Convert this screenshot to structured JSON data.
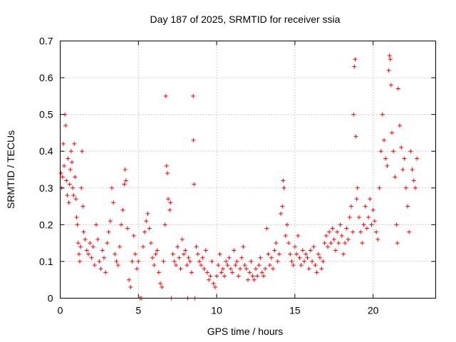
{
  "chart_data": {
    "type": "scatter",
    "title": "Day 187 of 2025, SRMTID for receiver ssia",
    "xlabel": "GPS time / hours",
    "ylabel": "SRMTID / TECUs",
    "xlim": [
      0,
      24
    ],
    "ylim": [
      0,
      0.7
    ],
    "xticks": [
      0,
      5,
      10,
      15,
      20
    ],
    "xtick_labels": [
      "0",
      "5",
      "10",
      "15",
      "20"
    ],
    "yticks": [
      0,
      0.1,
      0.2,
      0.3,
      0.4,
      0.5,
      0.6,
      0.7
    ],
    "ytick_labels": [
      "0",
      "0.1",
      "0.2",
      "0.3",
      "0.4",
      "0.5",
      "0.6",
      "0.7"
    ],
    "grid": true,
    "marker": "+",
    "color": "#ff0000",
    "series": [
      {
        "name": "SRMTID",
        "points": [
          [
            0.05,
            0.34
          ],
          [
            0.1,
            0.3
          ],
          [
            0.15,
            0.33
          ],
          [
            0.2,
            0.42
          ],
          [
            0.25,
            0.36
          ],
          [
            0.3,
            0.5
          ],
          [
            0.35,
            0.47
          ],
          [
            0.4,
            0.32
          ],
          [
            0.45,
            0.28
          ],
          [
            0.5,
            0.38
          ],
          [
            0.55,
            0.26
          ],
          [
            0.6,
            0.31
          ],
          [
            0.65,
            0.35
          ],
          [
            0.7,
            0.4
          ],
          [
            0.75,
            0.37
          ],
          [
            0.8,
            0.3
          ],
          [
            0.85,
            0.28
          ],
          [
            0.9,
            0.42
          ],
          [
            0.95,
            0.33
          ],
          [
            1.0,
            0.27
          ],
          [
            1.05,
            0.22
          ],
          [
            1.1,
            0.2
          ],
          [
            1.15,
            0.15
          ],
          [
            1.2,
            0.12
          ],
          [
            1.25,
            0.1
          ],
          [
            1.3,
            0.14
          ],
          [
            1.35,
            0.3
          ],
          [
            1.4,
            0.4
          ],
          [
            1.45,
            0.25
          ],
          [
            1.5,
            0.18
          ],
          [
            1.6,
            0.16
          ],
          [
            1.7,
            0.13
          ],
          [
            1.8,
            0.12
          ],
          [
            1.9,
            0.15
          ],
          [
            2.0,
            0.11
          ],
          [
            2.1,
            0.14
          ],
          [
            2.2,
            0.09
          ],
          [
            2.3,
            0.2
          ],
          [
            2.4,
            0.16
          ],
          [
            2.5,
            0.1
          ],
          [
            2.6,
            0.08
          ],
          [
            2.7,
            0.13
          ],
          [
            2.8,
            0.11
          ],
          [
            2.9,
            0.07
          ],
          [
            3.0,
            0.15
          ],
          [
            3.1,
            0.18
          ],
          [
            3.2,
            0.21
          ],
          [
            3.3,
            0.3
          ],
          [
            3.4,
            0.26
          ],
          [
            3.5,
            0.12
          ],
          [
            3.6,
            0.1
          ],
          [
            3.7,
            0.09
          ],
          [
            3.8,
            0.14
          ],
          [
            3.9,
            0.2
          ],
          [
            4.0,
            0.24
          ],
          [
            4.1,
            0.31
          ],
          [
            4.15,
            0.35
          ],
          [
            4.2,
            0.32
          ],
          [
            4.3,
            0.19
          ],
          [
            4.4,
            0.05
          ],
          [
            4.5,
            0.03
          ],
          [
            4.6,
            0.1
          ],
          [
            4.7,
            0.17
          ],
          [
            4.8,
            0.12
          ],
          [
            4.9,
            0.08
          ],
          [
            5.0,
            0.1
          ],
          [
            5.1,
            0.0
          ],
          [
            5.2,
            0.0
          ],
          [
            5.3,
            0.14
          ],
          [
            5.4,
            0.18
          ],
          [
            5.5,
            0.21
          ],
          [
            5.6,
            0.23
          ],
          [
            5.7,
            0.19
          ],
          [
            5.8,
            0.15
          ],
          [
            5.9,
            0.11
          ],
          [
            6.0,
            0.09
          ],
          [
            6.1,
            0.12
          ],
          [
            6.2,
            0.13
          ],
          [
            6.3,
            0.07
          ],
          [
            6.4,
            0.04
          ],
          [
            6.5,
            0.03
          ],
          [
            6.6,
            0.1
          ],
          [
            6.7,
            0.2
          ],
          [
            6.75,
            0.55
          ],
          [
            6.8,
            0.36
          ],
          [
            6.85,
            0.34
          ],
          [
            6.9,
            0.27
          ],
          [
            7.0,
            0.24
          ],
          [
            7.05,
            0.26
          ],
          [
            7.1,
            0.0
          ],
          [
            7.2,
            0.12
          ],
          [
            7.3,
            0.1
          ],
          [
            7.4,
            0.09
          ],
          [
            7.5,
            0.14
          ],
          [
            7.6,
            0.11
          ],
          [
            7.7,
            0.08
          ],
          [
            7.8,
            0.16
          ],
          [
            7.9,
            0.12
          ],
          [
            8.0,
            0.13
          ],
          [
            8.1,
            0.09
          ],
          [
            8.15,
            0.0
          ],
          [
            8.2,
            0.11
          ],
          [
            8.3,
            0.1
          ],
          [
            8.4,
            0.07
          ],
          [
            8.5,
            0.55
          ],
          [
            8.52,
            0.43
          ],
          [
            8.55,
            0.31
          ],
          [
            8.6,
            0.0
          ],
          [
            8.7,
            0.14
          ],
          [
            8.8,
            0.12
          ],
          [
            8.9,
            0.1
          ],
          [
            9.0,
            0.09
          ],
          [
            9.1,
            0.11
          ],
          [
            9.2,
            0.08
          ],
          [
            9.3,
            0.13
          ],
          [
            9.4,
            0.07
          ],
          [
            9.5,
            0.05
          ],
          [
            9.6,
            0.06
          ],
          [
            9.7,
            0.1
          ],
          [
            9.8,
            0.04
          ],
          [
            9.9,
            0.03
          ],
          [
            10.0,
            0.06
          ],
          [
            10.1,
            0.09
          ],
          [
            10.2,
            0.12
          ],
          [
            10.3,
            0.07
          ],
          [
            10.4,
            0.08
          ],
          [
            10.5,
            0.06
          ],
          [
            10.6,
            0.1
          ],
          [
            10.7,
            0.09
          ],
          [
            10.8,
            0.11
          ],
          [
            10.9,
            0.08
          ],
          [
            11.0,
            0.07
          ],
          [
            11.1,
            0.13
          ],
          [
            11.2,
            0.09
          ],
          [
            11.3,
            0.1
          ],
          [
            11.4,
            0.06
          ],
          [
            11.5,
            0.08
          ],
          [
            11.6,
            0.11
          ],
          [
            11.7,
            0.14
          ],
          [
            11.8,
            0.09
          ],
          [
            11.9,
            0.08
          ],
          [
            12.0,
            0.05
          ],
          [
            12.1,
            0.07
          ],
          [
            12.2,
            0.1
          ],
          [
            12.3,
            0.06
          ],
          [
            12.4,
            0.05
          ],
          [
            12.5,
            0.08
          ],
          [
            12.6,
            0.06
          ],
          [
            12.7,
            0.09
          ],
          [
            12.8,
            0.11
          ],
          [
            12.9,
            0.07
          ],
          [
            13.0,
            0.06
          ],
          [
            13.1,
            0.08
          ],
          [
            13.2,
            0.19
          ],
          [
            13.3,
            0.12
          ],
          [
            13.4,
            0.09
          ],
          [
            13.5,
            0.11
          ],
          [
            13.6,
            0.08
          ],
          [
            13.7,
            0.13
          ],
          [
            13.8,
            0.15
          ],
          [
            13.9,
            0.1
          ],
          [
            14.0,
            0.12
          ],
          [
            14.1,
            0.23
          ],
          [
            14.2,
            0.25
          ],
          [
            14.25,
            0.32
          ],
          [
            14.3,
            0.3
          ],
          [
            14.4,
            0.17
          ],
          [
            14.5,
            0.2
          ],
          [
            14.6,
            0.15
          ],
          [
            14.7,
            0.12
          ],
          [
            14.8,
            0.1
          ],
          [
            14.9,
            0.09
          ],
          [
            15.0,
            0.14
          ],
          [
            15.1,
            0.12
          ],
          [
            15.2,
            0.17
          ],
          [
            15.3,
            0.11
          ],
          [
            15.4,
            0.09
          ],
          [
            15.5,
            0.13
          ],
          [
            15.6,
            0.1
          ],
          [
            15.7,
            0.12
          ],
          [
            15.8,
            0.11
          ],
          [
            15.9,
            0.08
          ],
          [
            16.0,
            0.13
          ],
          [
            16.1,
            0.1
          ],
          [
            16.2,
            0.14
          ],
          [
            16.3,
            0.09
          ],
          [
            16.4,
            0.07
          ],
          [
            16.5,
            0.12
          ],
          [
            16.6,
            0.11
          ],
          [
            16.7,
            0.08
          ],
          [
            16.8,
            0.1
          ],
          [
            16.9,
            0.15
          ],
          [
            17.0,
            0.17
          ],
          [
            17.1,
            0.14
          ],
          [
            17.2,
            0.18
          ],
          [
            17.3,
            0.15
          ],
          [
            17.4,
            0.19
          ],
          [
            17.5,
            0.16
          ],
          [
            17.6,
            0.13
          ],
          [
            17.7,
            0.18
          ],
          [
            17.8,
            0.15
          ],
          [
            17.9,
            0.2
          ],
          [
            18.0,
            0.17
          ],
          [
            18.1,
            0.12
          ],
          [
            18.2,
            0.15
          ],
          [
            18.3,
            0.19
          ],
          [
            18.4,
            0.16
          ],
          [
            18.5,
            0.22
          ],
          [
            18.6,
            0.25
          ],
          [
            18.7,
            0.18
          ],
          [
            18.75,
            0.5
          ],
          [
            18.8,
            0.63
          ],
          [
            18.85,
            0.65
          ],
          [
            18.9,
            0.44
          ],
          [
            18.95,
            0.27
          ],
          [
            19.0,
            0.3
          ],
          [
            19.1,
            0.22
          ],
          [
            19.2,
            0.18
          ],
          [
            19.3,
            0.15
          ],
          [
            19.4,
            0.2
          ],
          [
            19.5,
            0.25
          ],
          [
            19.6,
            0.19
          ],
          [
            19.7,
            0.22
          ],
          [
            19.8,
            0.27
          ],
          [
            19.9,
            0.2
          ],
          [
            20.0,
            0.24
          ],
          [
            20.1,
            0.21
          ],
          [
            20.2,
            0.18
          ],
          [
            20.3,
            0.16
          ],
          [
            20.4,
            0.3
          ],
          [
            20.5,
            0.4
          ],
          [
            20.6,
            0.5
          ],
          [
            20.7,
            0.43
          ],
          [
            20.8,
            0.38
          ],
          [
            20.9,
            0.36
          ],
          [
            21.0,
            0.62
          ],
          [
            21.05,
            0.66
          ],
          [
            21.1,
            0.65
          ],
          [
            21.15,
            0.58
          ],
          [
            21.2,
            0.45
          ],
          [
            21.3,
            0.4
          ],
          [
            21.4,
            0.33
          ],
          [
            21.5,
            0.2
          ],
          [
            21.55,
            0.15
          ],
          [
            21.6,
            0.57
          ],
          [
            21.7,
            0.47
          ],
          [
            21.8,
            0.41
          ],
          [
            21.9,
            0.35
          ],
          [
            22.0,
            0.38
          ],
          [
            22.1,
            0.3
          ],
          [
            22.2,
            0.25
          ],
          [
            22.3,
            0.18
          ],
          [
            22.4,
            0.4
          ],
          [
            22.5,
            0.35
          ],
          [
            22.6,
            0.32
          ],
          [
            22.7,
            0.3
          ],
          [
            22.8,
            0.38
          ]
        ]
      }
    ]
  }
}
